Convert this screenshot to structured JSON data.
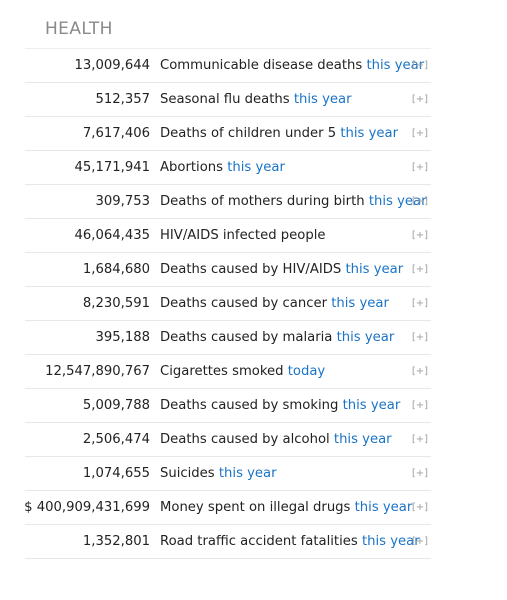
{
  "section": {
    "title": "HEALTH"
  },
  "rows": [
    {
      "value": "13,009,644",
      "label": "Communicable disease deaths",
      "period": "this year",
      "more": "[+]"
    },
    {
      "value": "512,357",
      "label": "Seasonal flu deaths",
      "period": "this year",
      "more": "[+]"
    },
    {
      "value": "7,617,406",
      "label": "Deaths of children under 5",
      "period": "this year",
      "more": "[+]"
    },
    {
      "value": "45,171,941",
      "label": "Abortions",
      "period": "this year",
      "more": "[+]"
    },
    {
      "value": "309,753",
      "label": "Deaths of mothers during birth",
      "period": "this year",
      "more": "[+]"
    },
    {
      "value": "46,064,435",
      "label": "HIV/AIDS infected people",
      "period": "",
      "more": "[+]"
    },
    {
      "value": "1,684,680",
      "label": "Deaths caused by HIV/AIDS",
      "period": "this year",
      "more": "[+]"
    },
    {
      "value": "8,230,591",
      "label": "Deaths caused by cancer",
      "period": "this year",
      "more": "[+]"
    },
    {
      "value": "395,188",
      "label": "Deaths caused by malaria",
      "period": "this year",
      "more": "[+]"
    },
    {
      "value": "12,547,890,767",
      "label": "Cigarettes smoked",
      "period": "today",
      "more": "[+]"
    },
    {
      "value": "5,009,788",
      "label": "Deaths caused by smoking",
      "period": "this year",
      "more": "[+]"
    },
    {
      "value": "2,506,474",
      "label": "Deaths caused by alcohol",
      "period": "this year",
      "more": "[+]"
    },
    {
      "value": "1,074,655",
      "label": "Suicides",
      "period": "this year",
      "more": "[+]"
    },
    {
      "value": "$ 400,909,431,699",
      "label": "Money spent on illegal drugs",
      "period": "this year",
      "more": "[+]"
    },
    {
      "value": "1,352,801",
      "label": "Road traffic accident fatalities",
      "period": "this year",
      "more": "[+]"
    }
  ],
  "colors": {
    "link": "#1a73c7",
    "title": "#8a8a8a",
    "expander": "#a0a0a0"
  }
}
